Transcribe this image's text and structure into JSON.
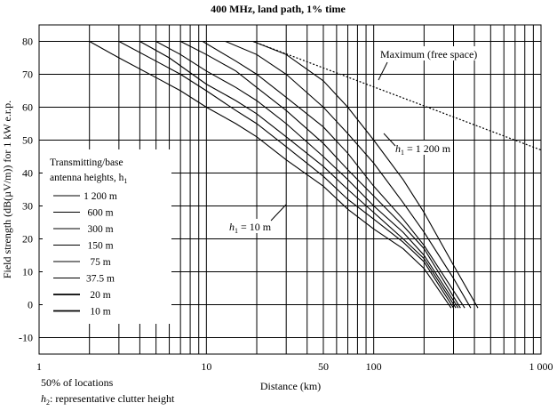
{
  "chart_data": {
    "type": "line",
    "title": "400 MHz, land path, 1% time",
    "xlabel": "Distance (km)",
    "ylabel": "Field strength (dB(µV/m)) for 1 kW e.r.p.",
    "x_scale": "log",
    "xlim": [
      1,
      1000
    ],
    "ylim": [
      -15,
      85
    ],
    "x_tick_labels": [
      "1",
      "10",
      "50",
      "100",
      "1 000"
    ],
    "x_tick_values": [
      1,
      10,
      50,
      100,
      1000
    ],
    "y_tick_values": [
      -10,
      0,
      10,
      20,
      30,
      40,
      50,
      60,
      70,
      80
    ],
    "grid": true,
    "legend": {
      "title_line1": "Transmitting/base",
      "title_line2": "antenna heights, h",
      "title_sub": "1",
      "entries": [
        "1 200 m",
        "600 m",
        "300 m",
        "150 m",
        "75 m",
        "37.5 m",
        "20 m",
        "10 m"
      ],
      "placement": "left"
    },
    "notes": {
      "locations": "50% of locations",
      "clutter_h": "h",
      "clutter_sub": "2",
      "clutter_rest": ": representative clutter height"
    },
    "annotations": {
      "max_label": "Maximum (free space)",
      "h1_top_h": "h",
      "h1_top_sub": "1",
      "h1_top_rest": " = 1 200 m",
      "h1_bottom_h": "h",
      "h1_bottom_sub": "1",
      "h1_bottom_rest": " = 10 m"
    },
    "max_curve": {
      "x": [
        19,
        1000
      ],
      "y": [
        80,
        47
      ]
    },
    "series": [
      {
        "height": "1 200 m",
        "x": [
          19,
          30,
          50,
          70,
          100,
          150,
          200,
          300,
          420
        ],
        "y": [
          80,
          76,
          68,
          60,
          50,
          38,
          28,
          12,
          -1
        ]
      },
      {
        "height": "600 m",
        "x": [
          13,
          20,
          30,
          50,
          70,
          100,
          150,
          200,
          300,
          380
        ],
        "y": [
          80,
          76,
          70,
          60,
          52,
          43,
          31,
          22,
          8,
          -1
        ]
      },
      {
        "height": "300 m",
        "x": [
          9.5,
          15,
          20,
          30,
          50,
          70,
          100,
          150,
          200,
          350
        ],
        "y": [
          80,
          74,
          70,
          63,
          54,
          46,
          36,
          26,
          18,
          -1
        ]
      },
      {
        "height": "150 m",
        "x": [
          7,
          10,
          15,
          20,
          30,
          50,
          70,
          100,
          150,
          200,
          330
        ],
        "y": [
          80,
          76,
          71,
          66,
          59,
          49,
          41,
          33,
          24,
          17,
          -1
        ]
      },
      {
        "height": "75 m",
        "x": [
          5,
          7,
          10,
          15,
          20,
          30,
          50,
          70,
          100,
          150,
          200,
          320
        ],
        "y": [
          80,
          76,
          71,
          66,
          62,
          55,
          45,
          38,
          30,
          22,
          15,
          -1
        ]
      },
      {
        "height": "37.5 m",
        "x": [
          4,
          6,
          10,
          15,
          20,
          30,
          50,
          70,
          100,
          150,
          200,
          310
        ],
        "y": [
          80,
          75,
          67,
          62,
          58,
          51,
          42,
          35,
          28,
          20,
          14,
          -1
        ]
      },
      {
        "height": "20 m",
        "x": [
          3,
          5,
          7,
          10,
          15,
          20,
          30,
          50,
          70,
          100,
          150,
          200,
          300
        ],
        "y": [
          80,
          74,
          70,
          65,
          59,
          55,
          48,
          39,
          32,
          26,
          19,
          13,
          -1
        ]
      },
      {
        "height": "10 m",
        "x": [
          2,
          3,
          5,
          7,
          10,
          15,
          20,
          30,
          50,
          70,
          100,
          150,
          200,
          290
        ],
        "y": [
          80,
          75,
          69,
          65,
          60,
          55,
          51,
          44,
          36,
          29,
          23,
          17,
          11,
          -1
        ]
      }
    ]
  }
}
